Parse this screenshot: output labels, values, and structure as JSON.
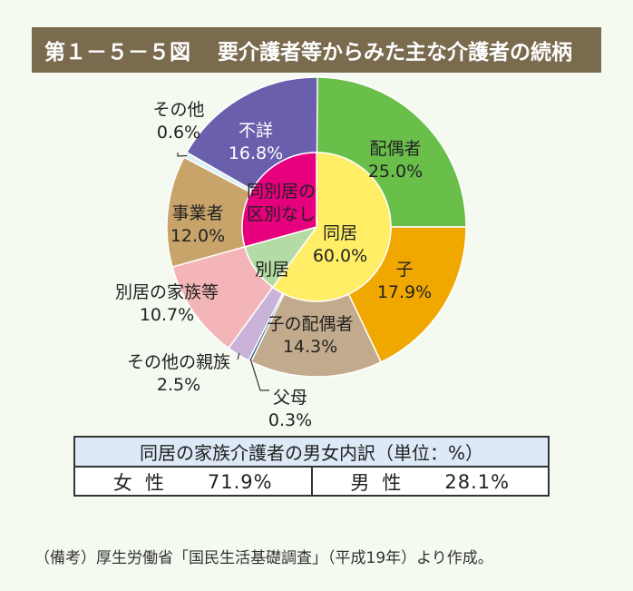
{
  "header": {
    "figure_number": "第１－５－５図",
    "title": "要介護者等からみた主な介護者の続柄"
  },
  "chart_data": {
    "type": "pie",
    "variant": "nested-donut",
    "outer_ring": [
      {
        "label": "配偶者",
        "value": 25.0,
        "value_text": "25.0%",
        "color": "#6abf4b"
      },
      {
        "label": "子",
        "value": 17.9,
        "value_text": "17.9%",
        "color": "#f0a800"
      },
      {
        "label": "子の配偶者",
        "value": 14.3,
        "value_text": "14.3%",
        "color": "#c2aa8c"
      },
      {
        "label": "父母",
        "value": 0.3,
        "value_text": "0.3%",
        "color": "#2c5a8a"
      },
      {
        "label": "その他の親族",
        "value": 2.5,
        "value_text": "2.5%",
        "color": "#c9b3d9"
      },
      {
        "label": "別居の家族等",
        "value": 10.7,
        "value_text": "10.7%",
        "color": "#f4b5b8"
      },
      {
        "label": "事業者",
        "value": 12.0,
        "value_text": "12.0%",
        "color": "#c9a46a"
      },
      {
        "label": "その他",
        "value": 0.6,
        "value_text": "0.6%",
        "color": "#d9eef6"
      },
      {
        "label": "不詳",
        "value": 16.8,
        "value_text": "16.8%",
        "color": "#6a5fad"
      }
    ],
    "inner_ring": [
      {
        "label": "同居",
        "value": 60.0,
        "value_text": "60.0%",
        "color": "#ffee66"
      },
      {
        "label": "別居",
        "value": 10.7,
        "color": "#b5dba5"
      },
      {
        "label": "同別居の区別なし",
        "line1": "同別居の",
        "line2": "区別なし",
        "value": 29.3,
        "color": "#e6007e"
      }
    ]
  },
  "breakdown": {
    "title": "同居の家族介護者の男女内訳（単位：%）",
    "female_label": "女性",
    "female_value": "71.9%",
    "male_label": "男性",
    "male_value": "28.1%"
  },
  "note": "（備考）厚生労働省「国民生活基礎調査」（平成19年）より作成。"
}
